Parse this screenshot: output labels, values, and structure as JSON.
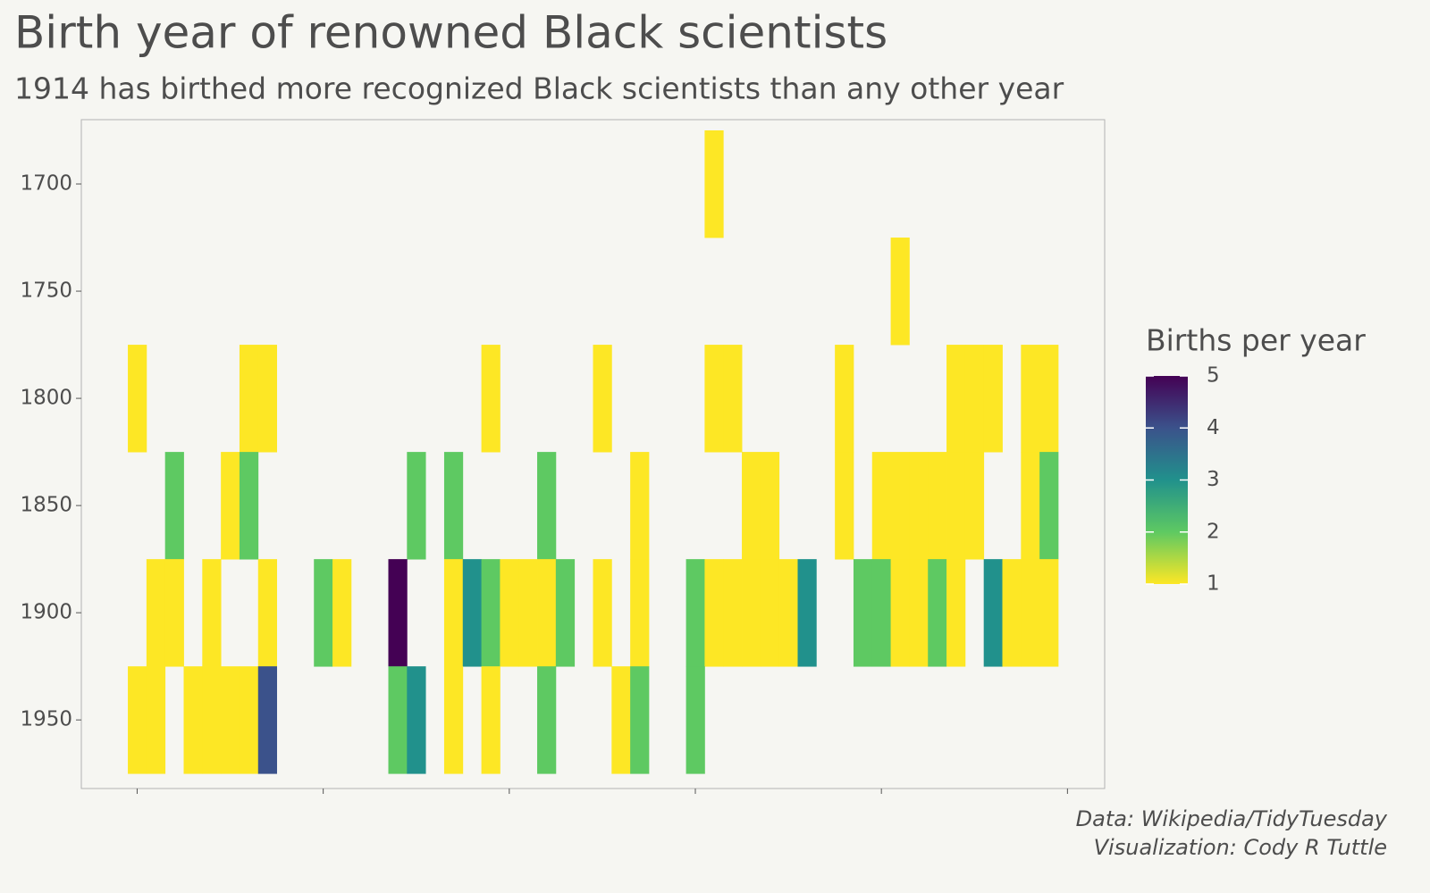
{
  "chart_data": {
    "type": "heatmap",
    "title": "Birth year of renowned Black scientists",
    "subtitle": "1914 has birthed more recognized Black scientists than any other year",
    "caption": [
      "Data: Wikipedia/TidyTuesday",
      "Visualization: Cody R Tuttle"
    ],
    "legend_title": "Births per year",
    "legend_ticks": [
      1,
      2,
      3,
      4,
      5
    ],
    "colors": [
      "#FDE725",
      "#5EC962",
      "#21918C",
      "#3B528B",
      "#440154"
    ],
    "xlim": [
      -3,
      52
    ],
    "xticks": [
      0,
      10,
      20,
      30,
      40,
      50
    ],
    "ylim": [
      1670,
      1982
    ],
    "y_reversed": true,
    "yticks": [
      1700,
      1750,
      1800,
      1850,
      1900,
      1950
    ],
    "tile_width": 1,
    "tile_height": 50,
    "x": [
      31,
      41,
      0,
      6,
      7,
      19,
      25,
      31,
      32,
      38,
      44,
      45,
      46,
      48,
      49,
      2,
      5,
      6,
      15,
      17,
      22,
      27,
      33,
      34,
      38,
      40,
      41,
      42,
      43,
      44,
      45,
      48,
      49,
      1,
      2,
      4,
      7,
      10,
      11,
      14,
      17,
      18,
      19,
      20,
      21,
      22,
      23,
      25,
      27,
      30,
      31,
      32,
      33,
      34,
      35,
      36,
      39,
      40,
      41,
      42,
      43,
      44,
      46,
      47,
      48,
      49,
      0,
      1,
      3,
      4,
      5,
      6,
      7,
      14,
      15,
      17,
      19,
      22,
      26,
      27,
      30
    ],
    "y": [
      1700,
      1750,
      1800,
      1800,
      1800,
      1800,
      1800,
      1800,
      1800,
      1800,
      1800,
      1800,
      1800,
      1800,
      1800,
      1850,
      1850,
      1850,
      1850,
      1850,
      1850,
      1850,
      1850,
      1850,
      1850,
      1850,
      1850,
      1850,
      1850,
      1850,
      1850,
      1850,
      1850,
      1900,
      1900,
      1900,
      1900,
      1900,
      1900,
      1900,
      1900,
      1900,
      1900,
      1900,
      1900,
      1900,
      1900,
      1900,
      1900,
      1900,
      1900,
      1900,
      1900,
      1900,
      1900,
      1900,
      1900,
      1900,
      1900,
      1900,
      1900,
      1900,
      1900,
      1900,
      1900,
      1900,
      1950,
      1950,
      1950,
      1950,
      1950,
      1950,
      1950,
      1950,
      1950,
      1950,
      1950,
      1950,
      1950,
      1950,
      1950
    ],
    "values": [
      1,
      1,
      1,
      1,
      1,
      1,
      1,
      1,
      1,
      1,
      1,
      1,
      1,
      1,
      1,
      2,
      1,
      2,
      2,
      2,
      2,
      1,
      1,
      1,
      1,
      1,
      1,
      1,
      1,
      1,
      1,
      1,
      2,
      1,
      1,
      1,
      1,
      2,
      1,
      5,
      1,
      3,
      2,
      1,
      1,
      1,
      2,
      1,
      1,
      2,
      1,
      1,
      1,
      1,
      1,
      3,
      2,
      2,
      1,
      1,
      2,
      1,
      3,
      1,
      1,
      1,
      1,
      1,
      1,
      1,
      1,
      1,
      4,
      2,
      3,
      1,
      1,
      2,
      1,
      2,
      2
    ]
  }
}
